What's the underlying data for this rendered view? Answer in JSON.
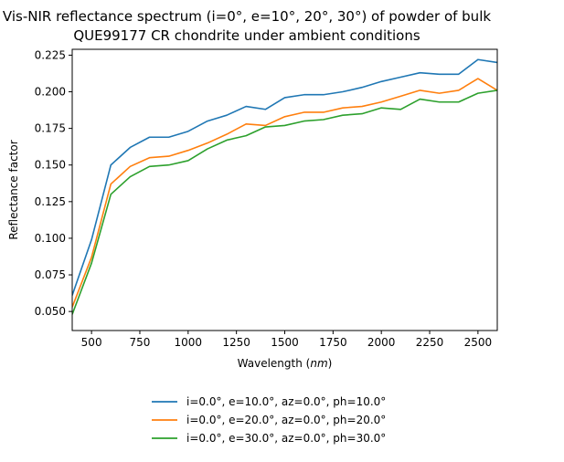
{
  "chart_data": {
    "type": "line",
    "title_lines": [
      "Vis-NIR reflectance spectrum (i=0°, e=10°, 20°, 30°) of powder of bulk",
      "QUE99177 CR chondrite under ambient conditions"
    ],
    "xlabel": "Wavelength ($nm$)",
    "ylabel": "Reflectance factor",
    "xlim": [
      400,
      2600
    ],
    "ylim": [
      0.037,
      0.229
    ],
    "xticks": [
      500,
      750,
      1000,
      1250,
      1500,
      1750,
      2000,
      2250,
      2500
    ],
    "yticks": [
      0.05,
      0.075,
      0.1,
      0.125,
      0.15,
      0.175,
      0.2,
      0.225
    ],
    "ytick_labels": [
      "0.050",
      "0.075",
      "0.100",
      "0.125",
      "0.150",
      "0.175",
      "0.200",
      "0.225"
    ],
    "grid": false,
    "legend_position": "below",
    "x": [
      400,
      500,
      600,
      700,
      800,
      900,
      1000,
      1100,
      1200,
      1300,
      1400,
      1500,
      1600,
      1700,
      1800,
      1900,
      2000,
      2100,
      2200,
      2300,
      2400,
      2500,
      2600
    ],
    "series": [
      {
        "name": "i=0.0°, e=10.0°, az=0.0°, ph=10.0°",
        "color": "#1f77b4",
        "values": [
          0.061,
          0.099,
          0.15,
          0.162,
          0.169,
          0.169,
          0.173,
          0.18,
          0.184,
          0.19,
          0.188,
          0.196,
          0.198,
          0.198,
          0.2,
          0.203,
          0.207,
          0.21,
          0.213,
          0.212,
          0.212,
          0.222,
          0.22
        ]
      },
      {
        "name": "i=0.0°, e=20.0°, az=0.0°, ph=20.0°",
        "color": "#ff7f0e",
        "values": [
          0.053,
          0.087,
          0.137,
          0.149,
          0.155,
          0.156,
          0.16,
          0.165,
          0.171,
          0.178,
          0.177,
          0.183,
          0.186,
          0.186,
          0.189,
          0.19,
          0.193,
          0.197,
          0.201,
          0.199,
          0.201,
          0.209,
          0.201
        ]
      },
      {
        "name": "i=0.0°, e=30.0°, az=0.0°, ph=30.0°",
        "color": "#2ca02c",
        "values": [
          0.048,
          0.083,
          0.13,
          0.142,
          0.149,
          0.15,
          0.153,
          0.161,
          0.167,
          0.17,
          0.176,
          0.177,
          0.18,
          0.181,
          0.184,
          0.185,
          0.189,
          0.188,
          0.195,
          0.193,
          0.193,
          0.199,
          0.201
        ]
      }
    ]
  }
}
